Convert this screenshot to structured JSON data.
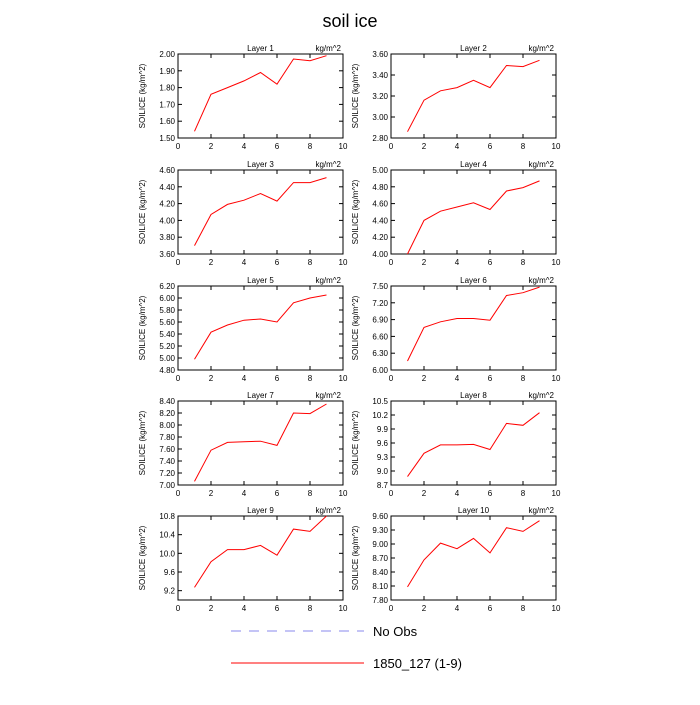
{
  "figure": {
    "title": "soil ice"
  },
  "legend": {
    "entries": [
      {
        "label": "No Obs",
        "color": "#8888ee",
        "style": "dashed"
      },
      {
        "label": "1850_127 (1-9)",
        "color": "#ff0000",
        "style": "solid"
      }
    ]
  },
  "chart_data": [
    {
      "type": "line",
      "title": "Layer 1",
      "units_label": "kg/m^2",
      "ylabel": "SOILICE  (kg/m^2)",
      "x": [
        1,
        2,
        3,
        4,
        5,
        6,
        7,
        8,
        9
      ],
      "xlim": [
        0,
        10
      ],
      "xticks": [
        0,
        2,
        4,
        6,
        8,
        10
      ],
      "ylim": [
        1.5,
        2.0
      ],
      "yticks": [
        "1.50",
        "1.60",
        "1.70",
        "1.80",
        "1.90",
        "2.00"
      ],
      "series": [
        {
          "name": "1850_127 (1-9)",
          "color": "#ff0000",
          "values": [
            1.54,
            1.76,
            1.8,
            1.84,
            1.89,
            1.82,
            1.97,
            1.96,
            1.99
          ]
        }
      ]
    },
    {
      "type": "line",
      "title": "Layer 2",
      "units_label": "kg/m^2",
      "ylabel": "SOILICE  (kg/m^2)",
      "x": [
        1,
        2,
        3,
        4,
        5,
        6,
        7,
        8,
        9
      ],
      "xlim": [
        0,
        10
      ],
      "xticks": [
        0,
        2,
        4,
        6,
        8,
        10
      ],
      "ylim": [
        2.8,
        3.6
      ],
      "yticks": [
        "2.80",
        "3.00",
        "3.20",
        "3.40",
        "3.60"
      ],
      "series": [
        {
          "name": "1850_127 (1-9)",
          "color": "#ff0000",
          "values": [
            2.86,
            3.16,
            3.25,
            3.28,
            3.35,
            3.28,
            3.49,
            3.48,
            3.54
          ]
        }
      ]
    },
    {
      "type": "line",
      "title": "Layer 3",
      "units_label": "kg/m^2",
      "ylabel": "SOILICE  (kg/m^2)",
      "x": [
        1,
        2,
        3,
        4,
        5,
        6,
        7,
        8,
        9
      ],
      "xlim": [
        0,
        10
      ],
      "xticks": [
        0,
        2,
        4,
        6,
        8,
        10
      ],
      "ylim": [
        3.6,
        4.6
      ],
      "yticks": [
        "3.60",
        "3.80",
        "4.00",
        "4.20",
        "4.40",
        "4.60"
      ],
      "series": [
        {
          "name": "1850_127 (1-9)",
          "color": "#ff0000",
          "values": [
            3.7,
            4.07,
            4.19,
            4.24,
            4.32,
            4.23,
            4.45,
            4.45,
            4.51
          ]
        }
      ]
    },
    {
      "type": "line",
      "title": "Layer 4",
      "units_label": "kg/m^2",
      "ylabel": "SOILICE  (kg/m^2)",
      "x": [
        1,
        2,
        3,
        4,
        5,
        6,
        7,
        8,
        9
      ],
      "xlim": [
        0,
        10
      ],
      "xticks": [
        0,
        2,
        4,
        6,
        8,
        10
      ],
      "ylim": [
        4.0,
        5.0
      ],
      "yticks": [
        "4.00",
        "4.20",
        "4.40",
        "4.60",
        "4.80",
        "5.00"
      ],
      "series": [
        {
          "name": "1850_127 (1-9)",
          "color": "#ff0000",
          "values": [
            4.0,
            4.4,
            4.51,
            4.56,
            4.61,
            4.53,
            4.75,
            4.79,
            4.87
          ]
        }
      ]
    },
    {
      "type": "line",
      "title": "Layer 5",
      "units_label": "kg/m^2",
      "ylabel": "SOILICE  (kg/m^2)",
      "x": [
        1,
        2,
        3,
        4,
        5,
        6,
        7,
        8,
        9
      ],
      "xlim": [
        0,
        10
      ],
      "xticks": [
        0,
        2,
        4,
        6,
        8,
        10
      ],
      "ylim": [
        4.8,
        6.2
      ],
      "yticks": [
        "4.80",
        "5.00",
        "5.20",
        "5.40",
        "5.60",
        "5.80",
        "6.00",
        "6.20"
      ],
      "series": [
        {
          "name": "1850_127 (1-9)",
          "color": "#ff0000",
          "values": [
            4.98,
            5.43,
            5.55,
            5.63,
            5.65,
            5.6,
            5.92,
            6.0,
            6.05
          ]
        }
      ]
    },
    {
      "type": "line",
      "title": "Layer 6",
      "units_label": "kg/m^2",
      "ylabel": "SOILICE  (kg/m^2)",
      "x": [
        1,
        2,
        3,
        4,
        5,
        6,
        7,
        8,
        9
      ],
      "xlim": [
        0,
        10
      ],
      "xticks": [
        0,
        2,
        4,
        6,
        8,
        10
      ],
      "ylim": [
        6.0,
        7.5
      ],
      "yticks": [
        "6.00",
        "6.30",
        "6.60",
        "6.90",
        "7.20",
        "7.50"
      ],
      "series": [
        {
          "name": "1850_127 (1-9)",
          "color": "#ff0000",
          "values": [
            6.16,
            6.76,
            6.86,
            6.92,
            6.92,
            6.89,
            7.33,
            7.38,
            7.48
          ]
        }
      ]
    },
    {
      "type": "line",
      "title": "Layer 7",
      "units_label": "kg/m^2",
      "ylabel": "SOILICE  (kg/m^2)",
      "x": [
        1,
        2,
        3,
        4,
        5,
        6,
        7,
        8,
        9
      ],
      "xlim": [
        0,
        10
      ],
      "xticks": [
        0,
        2,
        4,
        6,
        8,
        10
      ],
      "ylim": [
        7.0,
        8.4
      ],
      "yticks": [
        "7.00",
        "7.20",
        "7.40",
        "7.60",
        "7.80",
        "8.00",
        "8.20",
        "8.40"
      ],
      "series": [
        {
          "name": "1850_127 (1-9)",
          "color": "#ff0000",
          "values": [
            7.06,
            7.58,
            7.71,
            7.72,
            7.73,
            7.66,
            8.2,
            8.19,
            8.35
          ]
        }
      ]
    },
    {
      "type": "line",
      "title": "Layer 8",
      "units_label": "kg/m^2",
      "ylabel": "SOILICE  (kg/m^2)",
      "x": [
        1,
        2,
        3,
        4,
        5,
        6,
        7,
        8,
        9
      ],
      "xlim": [
        0,
        10
      ],
      "xticks": [
        0,
        2,
        4,
        6,
        8,
        10
      ],
      "ylim": [
        8.7,
        10.5
      ],
      "yticks": [
        "8.7",
        "9.0",
        "9.3",
        "9.6",
        "9.9",
        "10.2",
        "10.5"
      ],
      "series": [
        {
          "name": "1850_127 (1-9)",
          "color": "#ff0000",
          "values": [
            8.88,
            9.38,
            9.56,
            9.56,
            9.57,
            9.46,
            10.02,
            9.98,
            10.25
          ]
        }
      ]
    },
    {
      "type": "line",
      "title": "Layer 9",
      "units_label": "kg/m^2",
      "ylabel": "SOILICE  (kg/m^2)",
      "x": [
        1,
        2,
        3,
        4,
        5,
        6,
        7,
        8,
        9
      ],
      "xlim": [
        0,
        10
      ],
      "xticks": [
        0,
        2,
        4,
        6,
        8,
        10
      ],
      "ylim": [
        9.0,
        10.8
      ],
      "yticks": [
        "9.2",
        "9.6",
        "10.0",
        "10.4",
        "10.8"
      ],
      "series": [
        {
          "name": "1850_127 (1-9)",
          "color": "#ff0000",
          "values": [
            9.27,
            9.82,
            10.08,
            10.08,
            10.17,
            9.96,
            10.52,
            10.47,
            10.8
          ]
        }
      ]
    },
    {
      "type": "line",
      "title": "Layer 10",
      "units_label": "kg/m^2",
      "ylabel": "SOILICE  (kg/m^2)",
      "x": [
        1,
        2,
        3,
        4,
        5,
        6,
        7,
        8,
        9
      ],
      "xlim": [
        0,
        10
      ],
      "xticks": [
        0,
        2,
        4,
        6,
        8,
        10
      ],
      "ylim": [
        7.8,
        9.6
      ],
      "yticks": [
        "7.80",
        "8.10",
        "8.40",
        "8.70",
        "9.00",
        "9.30",
        "9.60"
      ],
      "series": [
        {
          "name": "1850_127 (1-9)",
          "color": "#ff0000",
          "values": [
            8.08,
            8.66,
            9.02,
            8.9,
            9.12,
            8.81,
            9.35,
            9.27,
            9.5
          ]
        }
      ]
    }
  ]
}
